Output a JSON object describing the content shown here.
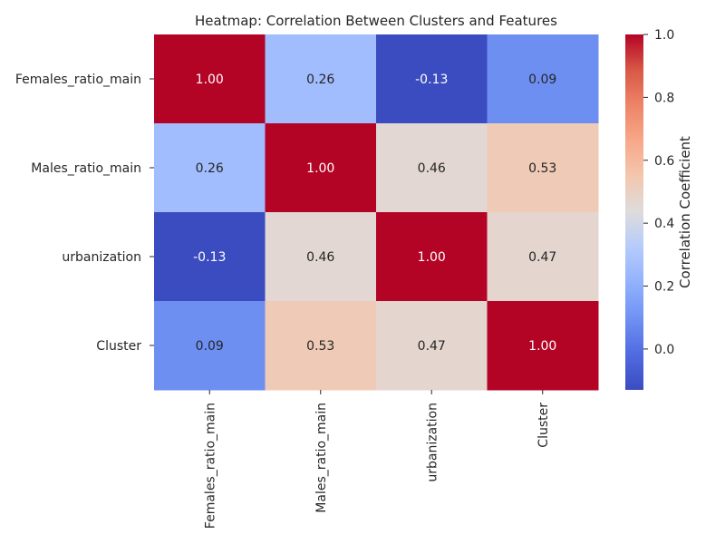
{
  "chart_data": {
    "type": "heatmap",
    "title": "Heatmap: Correlation Between Clusters and Features",
    "rows": [
      "Females_ratio_main",
      "Males_ratio_main",
      "urbanization",
      "Cluster"
    ],
    "columns": [
      "Females_ratio_main",
      "Males_ratio_main",
      "urbanization",
      "Cluster"
    ],
    "values": [
      [
        1.0,
        0.26,
        -0.13,
        0.09
      ],
      [
        0.26,
        1.0,
        0.46,
        0.53
      ],
      [
        -0.13,
        0.46,
        1.0,
        0.47
      ],
      [
        0.09,
        0.53,
        0.47,
        1.0
      ]
    ],
    "cell_labels": [
      [
        "1.00",
        "0.26",
        "-0.13",
        "0.09"
      ],
      [
        "0.26",
        "1.00",
        "0.46",
        "0.53"
      ],
      [
        "-0.13",
        "0.46",
        "1.00",
        "0.47"
      ],
      [
        "0.09",
        "0.53",
        "0.47",
        "1.00"
      ]
    ],
    "colormap": "coolwarm",
    "vmin": -0.13,
    "vmax": 1.0,
    "colorbar": {
      "label": "Correlation Coefficient",
      "ticks": [
        0.0,
        0.2,
        0.4,
        0.6,
        0.8,
        1.0
      ],
      "tick_labels": [
        "0.0",
        "0.2",
        "0.4",
        "0.6",
        "0.8",
        "1.0"
      ]
    }
  }
}
